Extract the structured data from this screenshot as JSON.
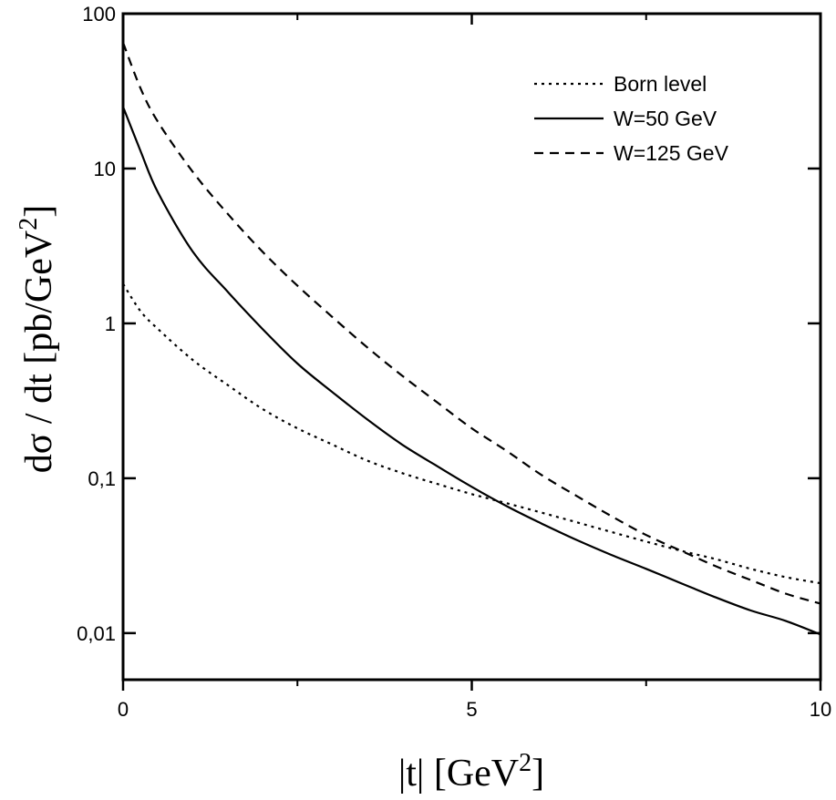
{
  "chart_data": {
    "type": "line",
    "xlabel": "|t| [GeV",
    "xlabel_sup": "2",
    "xlabel_close": "]",
    "ylabel": "dσ / dt [pb/GeV",
    "ylabel_sup": "2",
    "ylabel_close": "]",
    "xlim": [
      0,
      10
    ],
    "ylim": [
      0.005,
      100
    ],
    "yscale": "log",
    "grid": false,
    "legend_position": "top-right",
    "x_ticks": [
      {
        "value": 0,
        "label": "0"
      },
      {
        "value": 5,
        "label": "5"
      },
      {
        "value": 10,
        "label": "10"
      }
    ],
    "x_minor_ticks": [
      2.5,
      7.5
    ],
    "y_ticks": [
      {
        "value": 0.01,
        "label": "0,01"
      },
      {
        "value": 0.1,
        "label": "0,1"
      },
      {
        "value": 1,
        "label": "1"
      },
      {
        "value": 10,
        "label": "10"
      },
      {
        "value": 100,
        "label": "100"
      }
    ],
    "series": [
      {
        "name": "Born level",
        "style": "dotted",
        "x": [
          0,
          0.25,
          0.5,
          1,
          1.5,
          2,
          2.5,
          3,
          3.5,
          4,
          4.5,
          5,
          5.5,
          6,
          6.5,
          7,
          7.5,
          8,
          8.5,
          9,
          9.5,
          10
        ],
        "y": [
          1.8,
          1.2,
          0.92,
          0.58,
          0.4,
          0.28,
          0.21,
          0.165,
          0.13,
          0.108,
          0.092,
          0.079,
          0.069,
          0.06,
          0.052,
          0.045,
          0.039,
          0.034,
          0.03,
          0.026,
          0.023,
          0.021
        ]
      },
      {
        "name": "W=50 GeV",
        "style": "solid",
        "x": [
          0,
          0.25,
          0.5,
          1,
          1.5,
          2,
          2.5,
          3,
          3.5,
          4,
          4.5,
          5,
          5.5,
          6,
          6.5,
          7,
          7.5,
          8,
          8.5,
          9,
          9.5,
          10
        ],
        "y": [
          25,
          13,
          7.0,
          2.9,
          1.6,
          0.92,
          0.55,
          0.36,
          0.24,
          0.165,
          0.12,
          0.088,
          0.066,
          0.051,
          0.04,
          0.032,
          0.026,
          0.021,
          0.017,
          0.014,
          0.012,
          0.0098
        ]
      },
      {
        "name": "W=125 GeV",
        "style": "dashed",
        "x": [
          0,
          0.25,
          0.5,
          1,
          1.5,
          2,
          2.5,
          3,
          3.5,
          4,
          4.5,
          5,
          5.5,
          6,
          6.5,
          7,
          7.5,
          8,
          8.5,
          9,
          9.5,
          10
        ],
        "y": [
          65,
          33,
          20,
          9.5,
          5.1,
          2.9,
          1.75,
          1.1,
          0.7,
          0.46,
          0.31,
          0.21,
          0.15,
          0.105,
          0.077,
          0.057,
          0.043,
          0.034,
          0.027,
          0.022,
          0.018,
          0.0155
        ]
      }
    ]
  }
}
